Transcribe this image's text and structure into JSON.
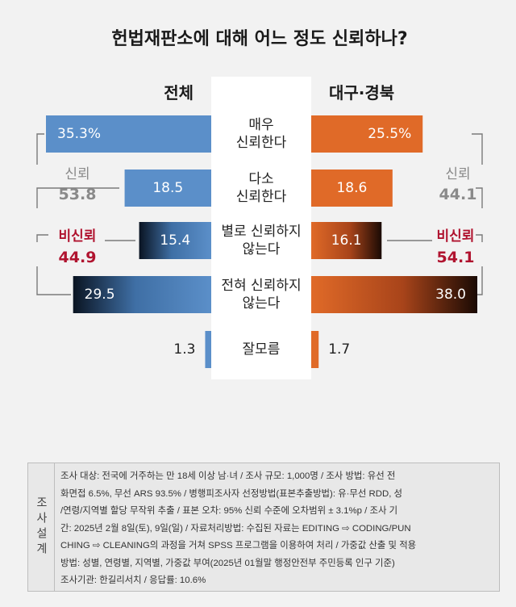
{
  "chart_data": {
    "type": "bar",
    "title": "헌법재판소에 대해 어느 정도 신뢰하나?",
    "categories": [
      "매우 신뢰한다",
      "다소 신뢰한다",
      "별로 신뢰하지 않는다",
      "전혀 신뢰하지 않는다",
      "잘모름"
    ],
    "category_lines": [
      [
        "매우",
        "신뢰한다"
      ],
      [
        "다소",
        "신뢰한다"
      ],
      [
        "별로 신뢰하지",
        "않는다"
      ],
      [
        "전혀 신뢰하지",
        "않는다"
      ],
      [
        "잘모름"
      ]
    ],
    "series": [
      {
        "name": "전체",
        "values": [
          35.3,
          18.5,
          15.4,
          29.5,
          1.3
        ],
        "labels": [
          "35.3%",
          "18.5",
          "15.4",
          "29.5",
          "1.3"
        ]
      },
      {
        "name": "대구·경북",
        "values": [
          25.5,
          18.6,
          16.1,
          38.0,
          1.7
        ],
        "labels": [
          "25.5%",
          "18.6",
          "16.1",
          "38.0",
          "1.7"
        ]
      }
    ],
    "groups": {
      "left": {
        "trust": {
          "name": "신뢰",
          "total": "53.8"
        },
        "distrust": {
          "name": "비신뢰",
          "total": "44.9"
        }
      },
      "right": {
        "trust": {
          "name": "신뢰",
          "total": "44.1"
        },
        "distrust": {
          "name": "비신뢰",
          "total": "54.1"
        }
      }
    },
    "colors": {
      "left": "#5b8fc9",
      "right": "#e06a28",
      "distrust_text": "#b0132f",
      "trust_text": "#8a8a8a",
      "center_panel": "#ffffff"
    }
  },
  "survey": {
    "label": "조사설계",
    "lines": [
      "조사 대상: 전국에 거주하는 만 18세 이상 남·녀 / 조사 규모: 1,000명 / 조사 방법: 유선 전",
      "화면접 6.5%, 무선 ARS 93.5% / 병행피조사자 선정방법(표본추출방법): 유·무선 RDD, 성",
      "/연령/지역별 할당 무작위 추출 / 표본 오차: 95% 신뢰 수준에 오차범위 ± 3.1%p / 조사 기",
      "간: 2025년 2월 8일(토), 9일(일) / 자료처리방법: 수집된 자료는 EDITING ⇨ CODING/PUN",
      "CHING ⇨ CLEANING의 과정을 거쳐 SPSS 프로그램을 이용하여 처리 / 가중값 산출 및 적용",
      "방법: 성별, 연령별, 지역별, 가중값 부여(2025년 01월말 행정안전부 주민등록 인구 기준)",
      "조사기관: 한길리서치 / 응답률: 10.6%"
    ]
  }
}
